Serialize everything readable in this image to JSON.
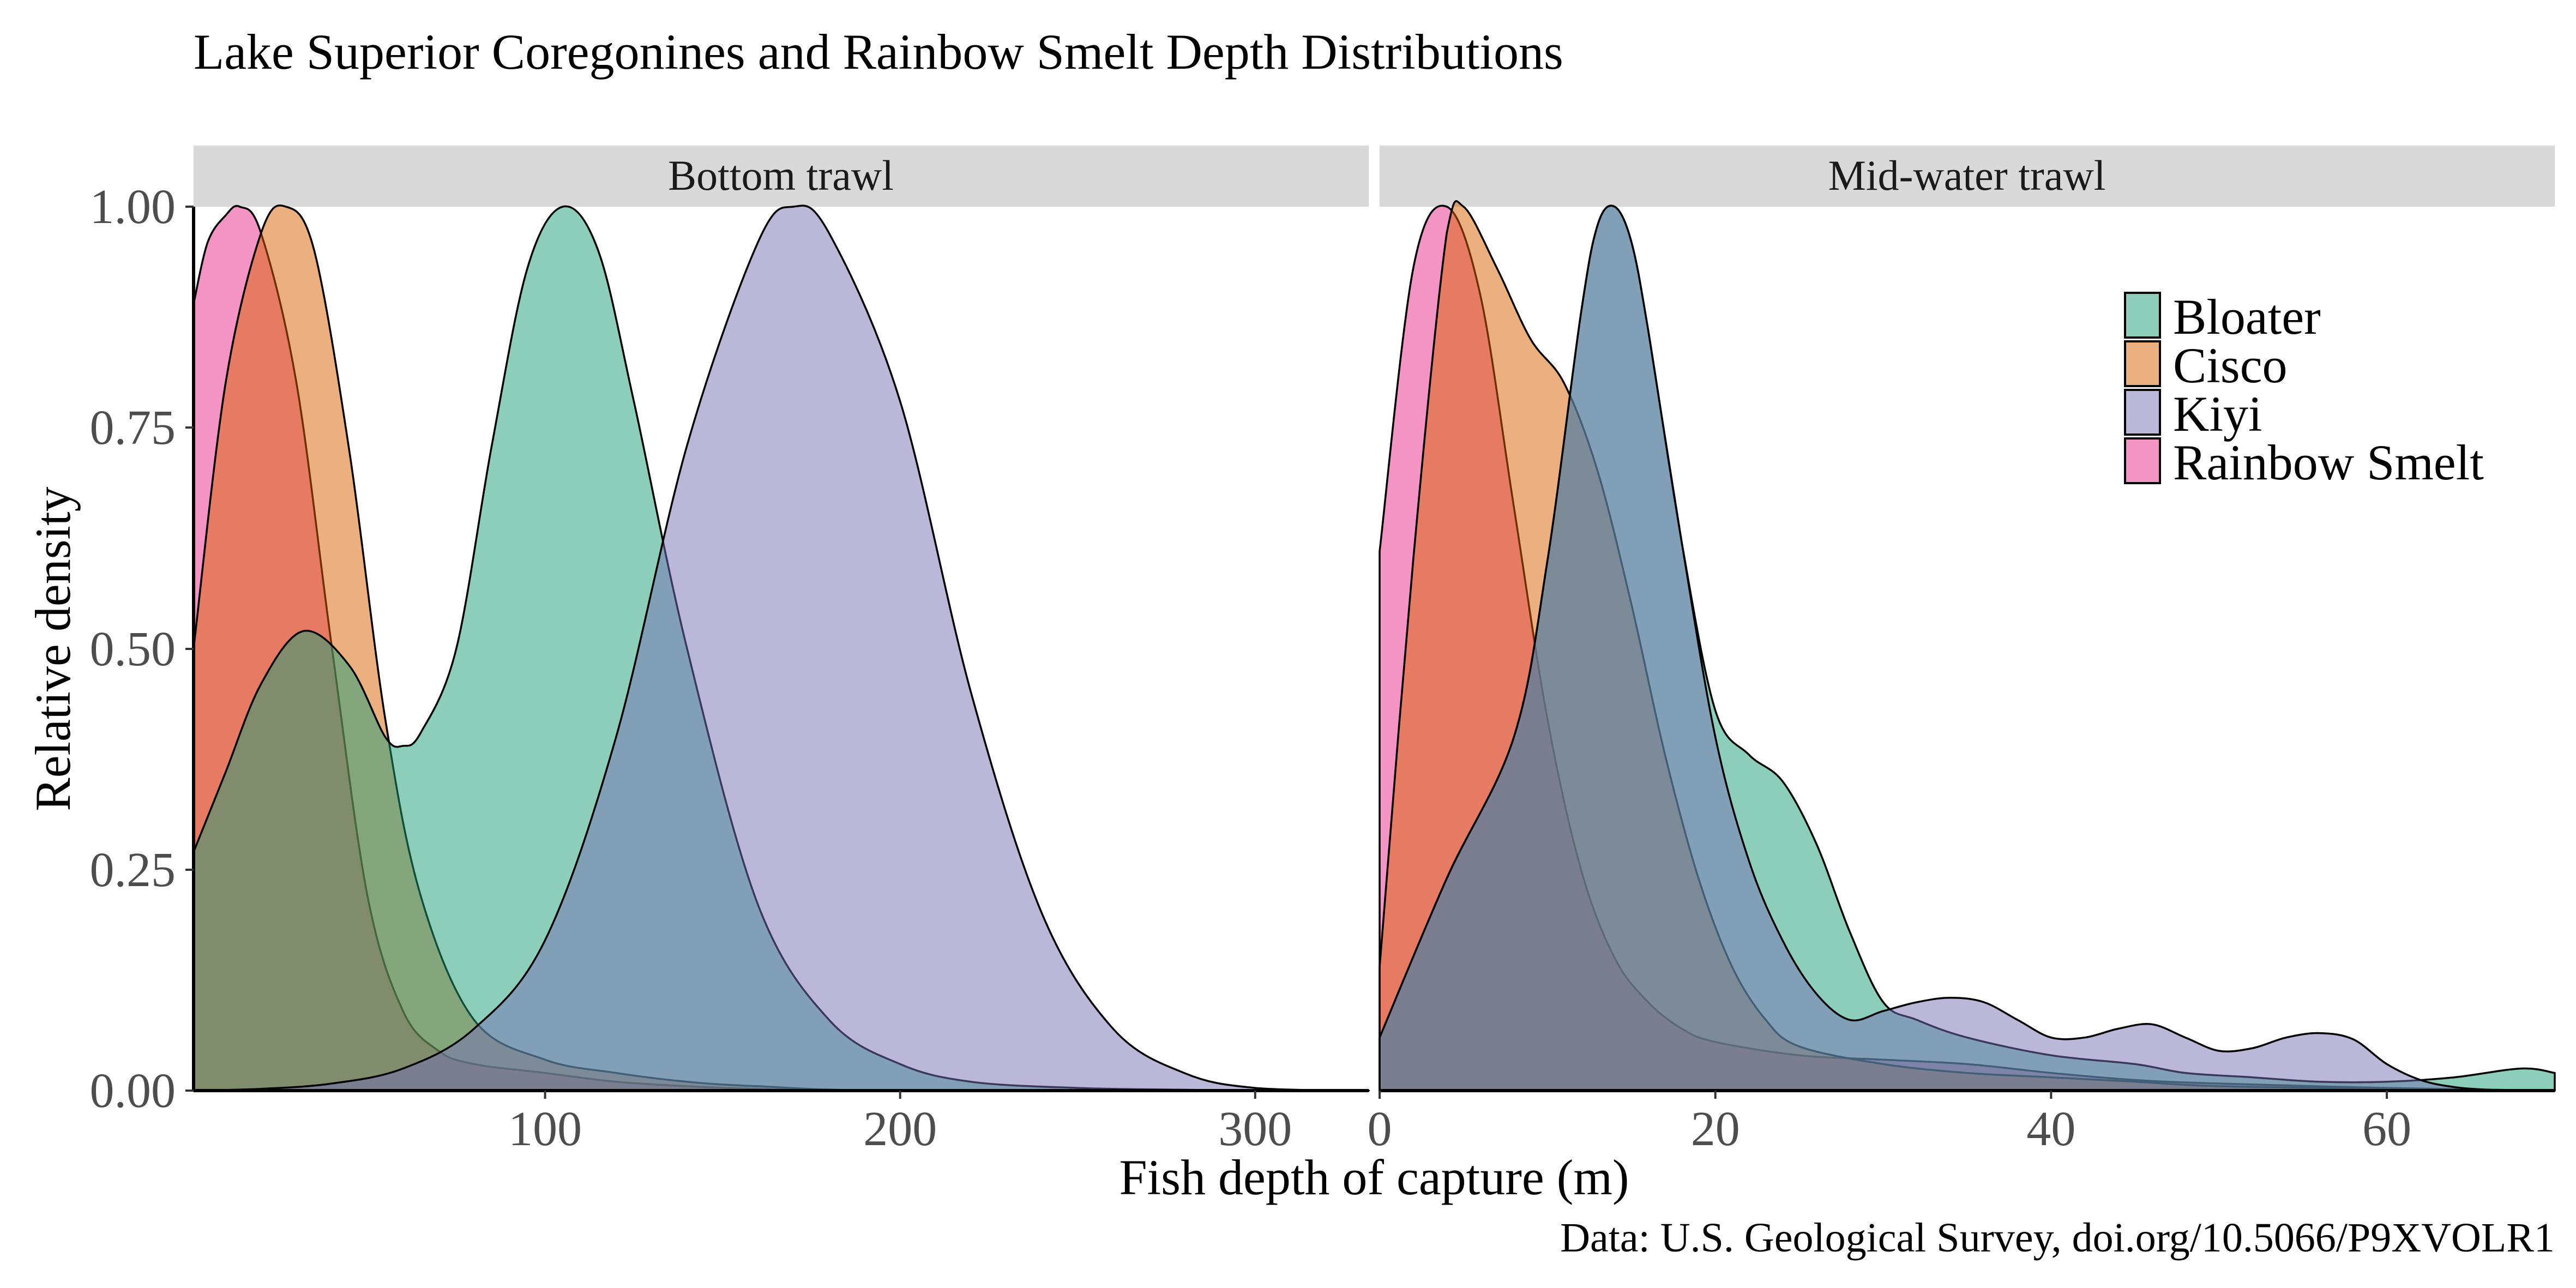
{
  "chart_data": {
    "type": "area",
    "title": "Lake Superior Coregonines and Rainbow Smelt Depth Distributions",
    "xlabel": "Fish depth of capture (m)",
    "ylabel": "Relative density",
    "caption": "Data: U.S. Geological Survey, doi.org/10.5066/P9XVOLR1",
    "ylim": [
      0,
      1
    ],
    "yticks": [
      "0.00",
      "0.25",
      "0.50",
      "0.75",
      "1.00"
    ],
    "legend": [
      {
        "name": "Bloater",
        "color": "#1b9e77"
      },
      {
        "name": "Cisco",
        "color": "#d95f02"
      },
      {
        "name": "Kiyi",
        "color": "#7570b3"
      },
      {
        "name": "Rainbow Smelt",
        "color": "#e7298a"
      }
    ],
    "legend_position": "top-right",
    "panels": [
      {
        "label": "Bottom trawl",
        "xlim": [
          1,
          332
        ],
        "xticks": [
          "100",
          "200",
          "300"
        ],
        "series": [
          {
            "name": "Rainbow Smelt",
            "x": [
              1,
              5,
              10,
              14,
              20,
              30,
              40,
              50,
              60,
              70,
              80,
              100,
              120,
              140,
              160,
              200,
              332
            ],
            "y": [
              0.89,
              0.96,
              0.99,
              1.0,
              0.97,
              0.8,
              0.5,
              0.22,
              0.09,
              0.045,
              0.03,
              0.02,
              0.01,
              0.005,
              0.002,
              0.0,
              0.0
            ]
          },
          {
            "name": "Cisco",
            "x": [
              1,
              10,
              20,
              27,
              35,
              45,
              55,
              65,
              80,
              100,
              120,
              140,
              160,
              200,
              332
            ],
            "y": [
              0.5,
              0.8,
              0.97,
              1.0,
              0.95,
              0.72,
              0.42,
              0.22,
              0.08,
              0.035,
              0.02,
              0.01,
              0.005,
              0.0,
              0.0
            ]
          },
          {
            "name": "Bloater",
            "x": [
              1,
              10,
              20,
              32,
              45,
              55,
              60,
              65,
              75,
              85,
              95,
              105,
              115,
              125,
              140,
              160,
              180,
              200,
              220,
              250,
              280,
              300,
              332
            ],
            "y": [
              0.27,
              0.36,
              0.46,
              0.52,
              0.48,
              0.4,
              0.39,
              0.405,
              0.5,
              0.73,
              0.93,
              1.0,
              0.95,
              0.78,
              0.5,
              0.21,
              0.08,
              0.03,
              0.01,
              0.003,
              0.001,
              0.0,
              0.0
            ]
          },
          {
            "name": "Kiyi",
            "x": [
              1,
              20,
              40,
              60,
              80,
              100,
              120,
              140,
              160,
              170,
              180,
              200,
              220,
              240,
              260,
              280,
              300,
              332
            ],
            "y": [
              0.0,
              0.002,
              0.008,
              0.025,
              0.07,
              0.17,
              0.4,
              0.73,
              0.96,
              1.0,
              0.97,
              0.78,
              0.45,
              0.2,
              0.07,
              0.02,
              0.003,
              0.0
            ]
          }
        ]
      },
      {
        "label": "Mid-water trawl",
        "xlim": [
          0,
          70
        ],
        "xticks": [
          "0",
          "20",
          "40",
          "60"
        ],
        "series": [
          {
            "name": "Rainbow Smelt",
            "x": [
              0,
              2,
              4,
              6,
              8,
              10,
              12,
              14,
              16,
              18,
              20,
              25,
              30,
              35,
              40,
              45,
              50,
              60,
              70
            ],
            "y": [
              0.61,
              0.93,
              1.0,
              0.9,
              0.66,
              0.42,
              0.25,
              0.15,
              0.1,
              0.07,
              0.055,
              0.04,
              0.035,
              0.03,
              0.02,
              0.012,
              0.008,
              0.003,
              0.0
            ]
          },
          {
            "name": "Cisco",
            "x": [
              0,
              2,
              4,
              5,
              7,
              9,
              11,
              13,
              15,
              17,
              19,
              21,
              23,
              25,
              30,
              35,
              40,
              45,
              50,
              60,
              70
            ],
            "y": [
              0.14,
              0.6,
              0.97,
              1.0,
              0.93,
              0.85,
              0.8,
              0.7,
              0.55,
              0.38,
              0.24,
              0.14,
              0.08,
              0.05,
              0.03,
              0.02,
              0.015,
              0.01,
              0.005,
              0.002,
              0.0
            ]
          },
          {
            "name": "Bloater",
            "x": [
              0,
              4,
              8,
              10,
              12,
              13,
              14,
              15,
              16,
              18,
              20,
              22,
              24,
              26,
              28,
              30,
              32,
              35,
              40,
              45,
              48,
              52,
              56,
              60,
              64,
              68,
              70
            ],
            "y": [
              0.06,
              0.24,
              0.4,
              0.6,
              0.88,
              0.98,
              1.0,
              0.96,
              0.86,
              0.62,
              0.43,
              0.38,
              0.35,
              0.28,
              0.18,
              0.1,
              0.08,
              0.06,
              0.04,
              0.03,
              0.02,
              0.015,
              0.01,
              0.01,
              0.015,
              0.025,
              0.02
            ]
          },
          {
            "name": "Kiyi",
            "x": [
              0,
              4,
              8,
              10,
              12,
              13,
              14,
              15,
              16,
              18,
              20,
              22,
              24,
              26,
              28,
              30,
              32,
              34,
              36,
              38,
              40,
              42,
              44,
              46,
              48,
              50,
              52,
              54,
              56,
              58,
              60,
              62,
              64,
              66,
              68,
              70
            ],
            "y": [
              0.06,
              0.24,
              0.4,
              0.6,
              0.88,
              0.98,
              1.0,
              0.96,
              0.86,
              0.62,
              0.4,
              0.26,
              0.17,
              0.11,
              0.08,
              0.09,
              0.1,
              0.105,
              0.1,
              0.08,
              0.06,
              0.06,
              0.07,
              0.075,
              0.06,
              0.045,
              0.048,
              0.06,
              0.065,
              0.058,
              0.03,
              0.012,
              0.004,
              0.001,
              0.0,
              0.0
            ]
          }
        ]
      }
    ]
  }
}
